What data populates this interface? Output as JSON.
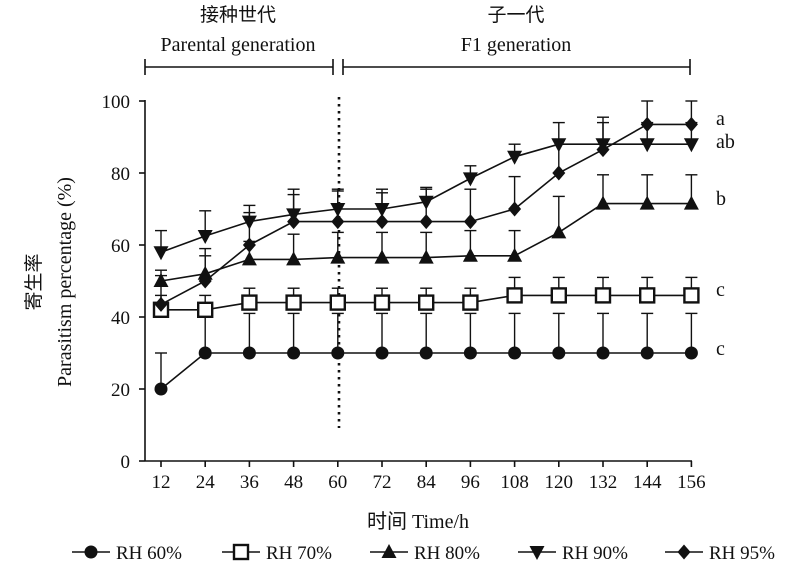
{
  "chart_data": {
    "type": "line",
    "x": [
      12,
      24,
      36,
      48,
      60,
      72,
      84,
      96,
      108,
      120,
      132,
      144,
      156
    ],
    "xlim": [
      0,
      156
    ],
    "ylim": [
      0,
      100
    ],
    "yticks": [
      0,
      20,
      40,
      60,
      80,
      100
    ],
    "xlabel": "时间 Time/h",
    "ylabel_cn": "寄生率",
    "ylabel": "Parasitism percentage (%)",
    "grid": false,
    "legend_position": "bottom",
    "phases": [
      {
        "label_cn": "接种世代",
        "label_en": "Parental generation"
      },
      {
        "label_cn": "子一代",
        "label_en": "F1 generation"
      }
    ],
    "series": [
      {
        "name": "RH 60%",
        "marker": "filled-circle",
        "letter": "c",
        "values": [
          20,
          30,
          30,
          30,
          30,
          30,
          30,
          30,
          30,
          30,
          30,
          30,
          30
        ],
        "error": [
          10,
          11,
          11,
          11,
          11,
          11,
          11,
          11,
          11,
          11,
          11,
          11,
          11
        ]
      },
      {
        "name": "RH 70%",
        "marker": "open-square",
        "letter": "c",
        "values": [
          42,
          42,
          44,
          44,
          44,
          44,
          44,
          44,
          46,
          46,
          46,
          46,
          46
        ],
        "error": [
          4,
          4,
          4,
          4,
          4,
          4,
          4,
          4,
          5,
          5,
          5,
          5,
          5
        ]
      },
      {
        "name": "RH 80%",
        "marker": "filled-triangle-up",
        "letter": "b",
        "values": [
          50,
          52,
          56,
          56,
          56.5,
          56.5,
          56.5,
          57,
          57,
          63.5,
          71.5,
          71.5,
          71.5
        ],
        "error": [
          3,
          5,
          5,
          7,
          7,
          7,
          7,
          7,
          7,
          10,
          8,
          8,
          8
        ]
      },
      {
        "name": "RH 90%",
        "marker": "filled-triangle-down",
        "letter": "ab",
        "values": [
          58,
          62.5,
          66.5,
          68.5,
          70,
          70,
          72,
          78.5,
          84.5,
          88,
          88,
          88,
          88
        ],
        "error": [
          6,
          7,
          4.5,
          5.5,
          5,
          4.5,
          4,
          3.5,
          3.5,
          6,
          6,
          6,
          6
        ]
      },
      {
        "name": "RH 95%",
        "marker": "filled-diamond",
        "letter": "a",
        "values": [
          43.5,
          50,
          60,
          66.5,
          66.5,
          66.5,
          66.5,
          66.5,
          70,
          80,
          86.5,
          93.5,
          93.5
        ],
        "error": [
          8,
          9,
          9,
          9,
          9,
          9,
          9,
          9,
          9,
          9,
          9,
          6.5,
          6.5
        ]
      }
    ]
  }
}
